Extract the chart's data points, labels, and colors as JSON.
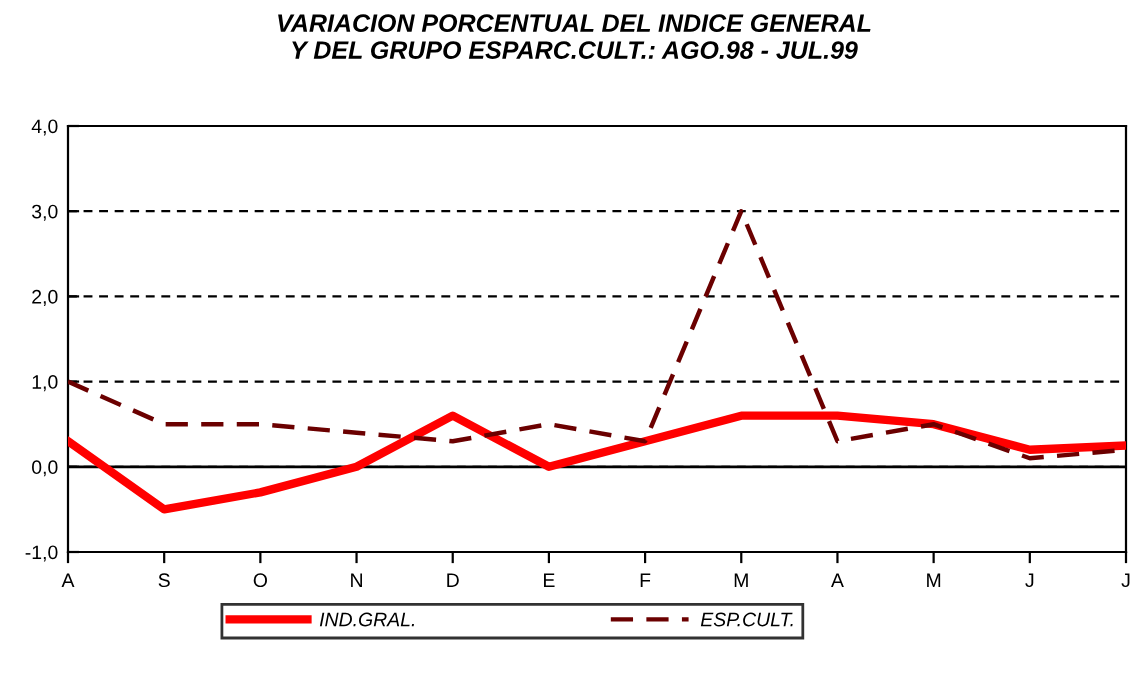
{
  "chart_data": {
    "type": "line",
    "title": "VARIACION PORCENTUAL DEL INDICE GENERAL\nY DEL GRUPO ESPARC.CULT.: AGO.98 - JUL.99",
    "categories": [
      "A",
      "S",
      "O",
      "N",
      "D",
      "E",
      "F",
      "M",
      "A",
      "M",
      "J",
      "J"
    ],
    "series": [
      {
        "name": "IND.GRAL.",
        "color": "#ff0000",
        "line_style": "solid",
        "values": [
          0.3,
          -0.5,
          -0.3,
          0.0,
          0.6,
          0.0,
          0.3,
          0.6,
          0.6,
          0.5,
          0.2,
          0.25
        ]
      },
      {
        "name": "ESP.CULT.",
        "color": "#6b0000",
        "line_style": "dashed",
        "values": [
          1.0,
          0.5,
          0.5,
          0.4,
          0.3,
          0.5,
          0.3,
          3.0,
          0.3,
          0.5,
          0.1,
          0.2
        ]
      }
    ],
    "ylim": [
      -1,
      4
    ],
    "yticks": [
      {
        "value": -1,
        "label": "-1,0"
      },
      {
        "value": 0,
        "label": "0,0"
      },
      {
        "value": 1,
        "label": "1,0"
      },
      {
        "value": 2,
        "label": "2,0"
      },
      {
        "value": 3,
        "label": "3,0"
      },
      {
        "value": 4,
        "label": "4,0"
      }
    ],
    "ref_lines": [
      {
        "axis": "y",
        "value": 0,
        "color": "#000000",
        "line_style": "solid"
      }
    ],
    "grid": "y",
    "legend": "bottom",
    "marker": "none"
  }
}
